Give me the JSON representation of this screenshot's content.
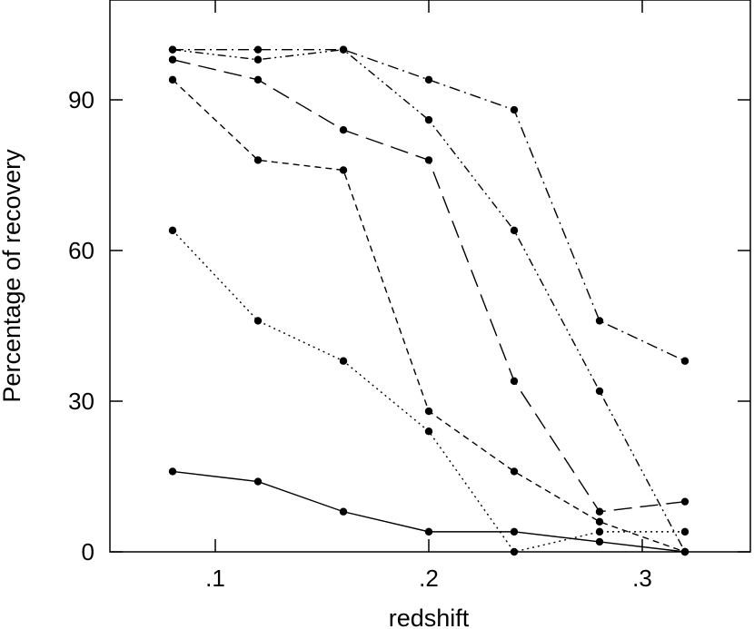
{
  "chart_data": {
    "type": "line",
    "title": "",
    "xlabel": "redshift",
    "ylabel": "Percentage of recovery",
    "xlim": [
      0.06,
      0.34
    ],
    "ylim": [
      0,
      100
    ],
    "x_ticks": [
      {
        "value": 0.1,
        "label": ".1"
      },
      {
        "value": 0.2,
        "label": ".2"
      },
      {
        "value": 0.3,
        "label": ".3"
      }
    ],
    "y_ticks": [
      {
        "value": 0,
        "label": "0"
      },
      {
        "value": 30,
        "label": "30"
      },
      {
        "value": 60,
        "label": "60"
      },
      {
        "value": 90,
        "label": "90"
      }
    ],
    "grid": false,
    "legend": "none",
    "marker": "filled-circle",
    "color": "#000000",
    "x": [
      0.08,
      0.12,
      0.16,
      0.2,
      0.24,
      0.28,
      0.32
    ],
    "series": [
      {
        "line_style": "solid",
        "values": [
          16,
          14,
          8,
          4,
          4,
          2,
          0
        ]
      },
      {
        "line_style": "dotted",
        "values": [
          64,
          46,
          38,
          24,
          0,
          4,
          4
        ]
      },
      {
        "line_style": "short-dash",
        "values": [
          94,
          78,
          76,
          28,
          16,
          6,
          0
        ]
      },
      {
        "line_style": "long-dash",
        "values": [
          98,
          94,
          84,
          78,
          34,
          8,
          10
        ]
      },
      {
        "line_style": "dash-dot-dot",
        "values": [
          100,
          98,
          100,
          86,
          64,
          32,
          0
        ]
      },
      {
        "line_style": "dash-dot",
        "values": [
          100,
          100,
          100,
          94,
          88,
          46,
          38
        ]
      }
    ]
  }
}
